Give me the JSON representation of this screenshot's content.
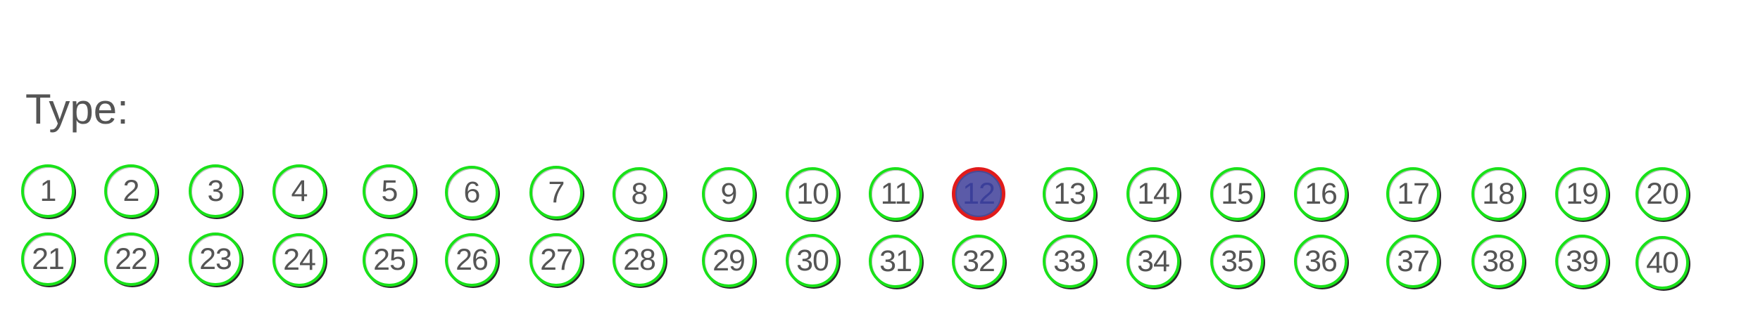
{
  "colors": {
    "background": "#ffffff",
    "text": "#555555",
    "unselected_ring": "#19e219",
    "unselected_ring_shadow": "#2a2a2a",
    "selected_fill": "#5b5ba8",
    "selected_ring": "#e01b1b"
  },
  "title": "Type:",
  "selected": "12",
  "rows": [
    [
      "1",
      "2",
      "3",
      "4",
      "5",
      "6",
      "7",
      "8",
      "9",
      "10",
      "11",
      "12",
      "13",
      "14",
      "15",
      "16",
      "17",
      "18",
      "19",
      "20"
    ],
    [
      "21",
      "22",
      "23",
      "24",
      "25",
      "26",
      "27",
      "28",
      "29",
      "30",
      "31",
      "32",
      "33",
      "34",
      "35",
      "36",
      "37",
      "38",
      "39",
      "40"
    ]
  ]
}
